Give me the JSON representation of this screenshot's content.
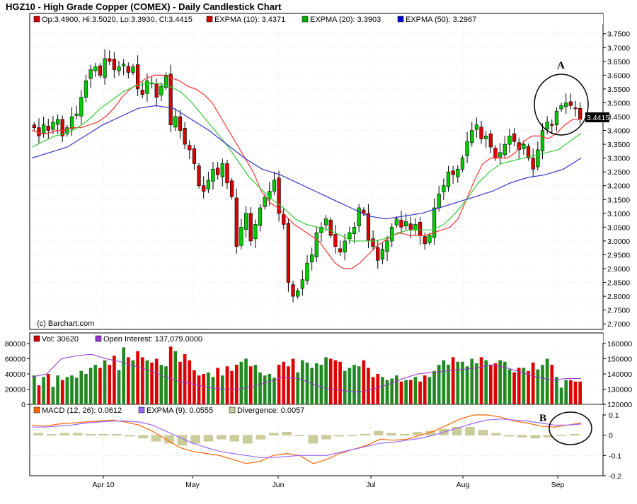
{
  "title": "HGZ10 - High Grade Copper (COMEX) - Daily Candlestick Chart",
  "copyright": "(c) Barchart.com",
  "price_legend": [
    {
      "label": "Op:3.4900, Hi:3.5020, Lo:3.3930, Cl:3.4415",
      "color": "#cc0000"
    },
    {
      "label": "EXPMA (10): 3.4371",
      "color": "#cc0000"
    },
    {
      "label": "EXPMA (20): 3.3903",
      "color": "#00aa00"
    },
    {
      "label": "EXPMA (50): 3.2967",
      "color": "#0000cc"
    }
  ],
  "volume_legend": [
    {
      "label": "Vol: 30620",
      "color": "#cc0000"
    },
    {
      "label": "Open Interest: 137,079.0000",
      "color": "#9933cc"
    }
  ],
  "macd_legend": [
    {
      "label": "MACD (12, 26): 0.0612",
      "color": "#ff6600"
    },
    {
      "label": "EXPMA (9): 0.0555",
      "color": "#9966ff"
    },
    {
      "label": "Divergence: 0.0057",
      "color": "#cccc99"
    }
  ],
  "last_price_label": "3.4415",
  "annotations": [
    "A",
    "B"
  ],
  "colors": {
    "up": "#00cc00",
    "down": "#dd0000",
    "vol_up": "#228822",
    "vol_down": "#dd0000",
    "ema10": "#ff3333",
    "ema20": "#33cc33",
    "ema50": "#3333cc",
    "oi": "#9933cc",
    "macd": "#ff6600",
    "signal": "#9966ff",
    "divergence": "#cccc99"
  },
  "chart_data": [
    {
      "type": "candlestick",
      "panel": "price",
      "ylim": [
        2.68,
        3.78
      ],
      "y_ticks": [
        "3.7500",
        "3.7000",
        "3.6500",
        "3.6000",
        "3.5500",
        "3.5000",
        "3.4500",
        "3.4000",
        "3.3500",
        "3.3000",
        "3.2500",
        "3.2000",
        "3.1500",
        "3.1000",
        "3.0500",
        "3.0000",
        "2.9500",
        "2.9000",
        "2.8500",
        "2.8000",
        "2.7500",
        "2.7000"
      ],
      "x_ticks": [
        "Apr 10",
        "May",
        "Jun",
        "Jul",
        "Aug",
        "Sep"
      ],
      "closes": [
        3.41,
        3.38,
        3.42,
        3.4,
        3.43,
        3.44,
        3.38,
        3.41,
        3.45,
        3.46,
        3.52,
        3.58,
        3.62,
        3.63,
        3.6,
        3.66,
        3.65,
        3.62,
        3.63,
        3.64,
        3.61,
        3.63,
        3.55,
        3.53,
        3.58,
        3.57,
        3.52,
        3.56,
        3.6,
        3.42,
        3.45,
        3.4,
        3.35,
        3.33,
        3.28,
        3.2,
        3.18,
        3.22,
        3.26,
        3.24,
        3.28,
        3.21,
        3.16,
        2.98,
        3.05,
        3.1,
        3.0,
        3.06,
        3.12,
        3.16,
        3.18,
        3.22,
        3.1,
        3.06,
        2.85,
        2.8,
        2.82,
        2.86,
        2.92,
        2.95,
        3.03,
        3.05,
        3.08,
        3.02,
        2.98,
        2.96,
        3.0,
        3.03,
        3.05,
        3.12,
        3.1,
        3.0,
        2.98,
        2.93,
        2.97,
        3.0,
        3.05,
        3.08,
        3.05,
        3.07,
        3.04,
        3.06,
        3.02,
        2.99,
        3.02,
        3.12,
        3.17,
        3.2,
        3.25,
        3.24,
        3.26,
        3.3,
        3.36,
        3.4,
        3.42,
        3.37,
        3.38,
        3.34,
        3.3,
        3.32,
        3.35,
        3.38,
        3.36,
        3.33,
        3.35,
        3.3,
        3.26,
        3.33,
        3.4,
        3.43,
        3.42,
        3.47,
        3.49,
        3.5,
        3.49,
        3.48,
        3.44
      ],
      "series": [
        {
          "name": "EXPMA (10)",
          "values": [
            3.4,
            3.39,
            3.39,
            3.4,
            3.4,
            3.41,
            3.41,
            3.42,
            3.43,
            3.45,
            3.48,
            3.52,
            3.55,
            3.57,
            3.59,
            3.6,
            3.6,
            3.59,
            3.58,
            3.56,
            3.55,
            3.53,
            3.5,
            3.45,
            3.4,
            3.35,
            3.3,
            3.25,
            3.18,
            3.14,
            3.12,
            3.09,
            3.06,
            3.04,
            3.02,
            3.0,
            2.96,
            2.92,
            2.9,
            2.9,
            2.92,
            2.95,
            2.98,
            3.0,
            3.02,
            3.03,
            3.02,
            3.02,
            3.02,
            3.03,
            3.04,
            3.05,
            3.08,
            3.15,
            3.22,
            3.28,
            3.3,
            3.3,
            3.3,
            3.32,
            3.36,
            3.38,
            3.38,
            3.37,
            3.39,
            3.42,
            3.44,
            3.44
          ]
        },
        {
          "name": "EXPMA (20)",
          "values": [
            3.34,
            3.36,
            3.38,
            3.39,
            3.41,
            3.44,
            3.48,
            3.51,
            3.54,
            3.56,
            3.57,
            3.57,
            3.56,
            3.54,
            3.5,
            3.45,
            3.4,
            3.35,
            3.29,
            3.23,
            3.19,
            3.15,
            3.12,
            3.08,
            3.06,
            3.05,
            3.04,
            3.02,
            3.0,
            3.0,
            3.0,
            3.01,
            3.03,
            3.04,
            3.04,
            3.04,
            3.06,
            3.1,
            3.15,
            3.21,
            3.25,
            3.28,
            3.29,
            3.3,
            3.31,
            3.32,
            3.33,
            3.36,
            3.39
          ]
        },
        {
          "name": "EXPMA (50)",
          "values": [
            3.3,
            3.32,
            3.34,
            3.38,
            3.42,
            3.45,
            3.48,
            3.49,
            3.48,
            3.44,
            3.4,
            3.35,
            3.3,
            3.26,
            3.24,
            3.21,
            3.18,
            3.15,
            3.12,
            3.09,
            3.08,
            3.09,
            3.1,
            3.12,
            3.14,
            3.16,
            3.18,
            3.21,
            3.23,
            3.24,
            3.26,
            3.3
          ]
        }
      ]
    },
    {
      "type": "bar",
      "panel": "volume",
      "ylim": [
        0,
        80000
      ],
      "y_ticks_left": [
        "80000",
        "60000",
        "40000",
        "20000",
        "0"
      ],
      "y_ticks_right": [
        "160000",
        "150000",
        "140000",
        "130000",
        "120000"
      ],
      "values": [
        38000,
        25000,
        36000,
        40000,
        23000,
        38000,
        32000,
        36000,
        38000,
        35000,
        44000,
        40000,
        48000,
        52000,
        48000,
        58000,
        52000,
        64000,
        45000,
        75000,
        62000,
        58000,
        70000,
        62000,
        58000,
        55000,
        60000,
        52000,
        50000,
        76000,
        70000,
        56000,
        66000,
        58000,
        45000,
        38000,
        40000,
        42000,
        36000,
        48000,
        38000,
        50000,
        44000,
        52000,
        56000,
        60000,
        50000,
        52000,
        42000,
        38000,
        40000,
        35000,
        52000,
        56000,
        50000,
        60000,
        42000,
        58000,
        55000,
        48000,
        54000,
        52000,
        62000,
        60000,
        58000,
        56000,
        44000,
        48000,
        52000,
        50000,
        58000,
        48000,
        36000,
        40000,
        36000,
        32000,
        34000,
        38000,
        30000,
        32000,
        32000,
        36000,
        30000,
        38000,
        36000,
        44000,
        52000,
        58000,
        52000,
        62000,
        56000,
        56000,
        50000,
        60000,
        54000,
        62000,
        58000,
        52000,
        54000,
        58000,
        56000,
        46000,
        42000,
        48000,
        48000,
        44000,
        55000,
        46000,
        52000,
        60000,
        52000,
        36000,
        22000,
        32000,
        32000,
        30000,
        30000
      ],
      "series": [
        {
          "name": "Open Interest",
          "values": [
            138000,
            140000,
            150000,
            152000,
            153000,
            150000,
            148000,
            145000,
            142000,
            138000,
            135000,
            133000,
            131000,
            130000,
            130000,
            132000,
            135000,
            138000,
            137000,
            133000,
            130000,
            129000,
            128000,
            130000,
            133000,
            137000,
            140000,
            141000,
            142000,
            143000,
            144000,
            146000,
            144000,
            141000,
            138000,
            136000,
            137000,
            137000
          ]
        }
      ]
    },
    {
      "type": "line",
      "panel": "macd",
      "ylim": [
        -0.2,
        0.1
      ],
      "y_ticks": [
        "0.1",
        "0",
        "-0.1",
        "-0.2"
      ],
      "series": [
        {
          "name": "MACD (12, 26)",
          "values": [
            0.05,
            0.045,
            0.055,
            0.06,
            0.065,
            0.07,
            0.075,
            0.065,
            0.05,
            0.02,
            -0.02,
            -0.06,
            -0.08,
            -0.09,
            -0.1,
            -0.12,
            -0.14,
            -0.13,
            -0.1,
            -0.09,
            -0.1,
            -0.14,
            -0.12,
            -0.09,
            -0.07,
            -0.05,
            -0.02,
            -0.025,
            -0.02,
            0.0,
            0.02,
            0.05,
            0.08,
            0.1,
            0.1,
            0.09,
            0.07,
            0.06,
            0.045,
            0.04,
            0.05,
            0.06
          ]
        },
        {
          "name": "EXPMA (9)",
          "values": [
            0.04,
            0.04,
            0.045,
            0.05,
            0.06,
            0.065,
            0.07,
            0.07,
            0.065,
            0.05,
            0.02,
            -0.01,
            -0.04,
            -0.06,
            -0.08,
            -0.09,
            -0.1,
            -0.11,
            -0.11,
            -0.105,
            -0.1,
            -0.1,
            -0.1,
            -0.085,
            -0.07,
            -0.055,
            -0.04,
            -0.035,
            -0.025,
            -0.015,
            0.0,
            0.02,
            0.04,
            0.06,
            0.075,
            0.08,
            0.075,
            0.07,
            0.06,
            0.05,
            0.05,
            0.055
          ]
        },
        {
          "name": "Divergence",
          "values": [
            0.01,
            0.005,
            0.01,
            0.01,
            0.005,
            0.005,
            0.005,
            -0.005,
            -0.015,
            -0.03,
            -0.04,
            -0.05,
            -0.04,
            -0.03,
            -0.02,
            -0.03,
            -0.04,
            -0.02,
            0.01,
            0.015,
            0.0,
            -0.04,
            -0.02,
            -0.005,
            0.0,
            0.005,
            0.02,
            0.01,
            0.005,
            0.015,
            0.02,
            0.03,
            0.04,
            0.04,
            0.025,
            0.01,
            -0.005,
            -0.01,
            -0.015,
            -0.01,
            0.0,
            0.005
          ]
        }
      ]
    }
  ]
}
